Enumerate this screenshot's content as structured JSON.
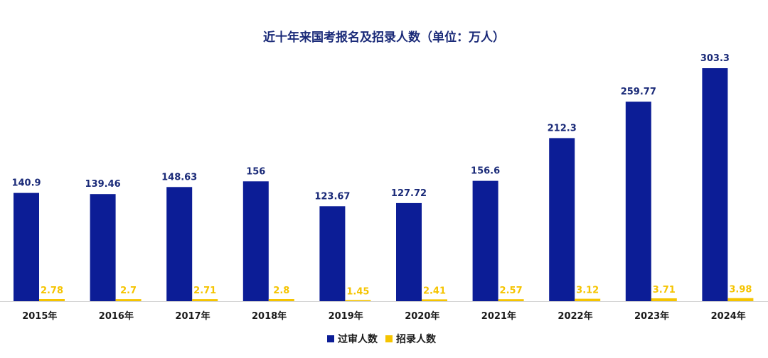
{
  "chart_data": {
    "type": "bar",
    "title": "近十年来国考报名及招录人数（单位：万人）",
    "categories": [
      "2015年",
      "2016年",
      "2017年",
      "2018年",
      "2019年",
      "2020年",
      "2021年",
      "2022年",
      "2023年",
      "2024年"
    ],
    "series": [
      {
        "name": "过审人数",
        "color": "#0c1d96",
        "values": [
          140.9,
          139.46,
          148.63,
          156,
          123.67,
          127.72,
          156.6,
          212.3,
          259.77,
          303.3
        ],
        "labels": [
          "140.9",
          "139.46",
          "148.63",
          "156",
          "123.67",
          "127.72",
          "156.6",
          "212.3",
          "259.77",
          "303.3"
        ]
      },
      {
        "name": "招录人数",
        "color": "#f5c400",
        "values": [
          2.78,
          2.7,
          2.71,
          2.8,
          1.45,
          2.41,
          2.57,
          3.12,
          3.71,
          3.98
        ],
        "labels": [
          "2.78",
          "2.7",
          "2.71",
          "2.8",
          "1.45",
          "2.41",
          "2.57",
          "3.12",
          "3.71",
          "3.98"
        ]
      }
    ],
    "ylim": [
      0,
      303.3
    ],
    "grid": false,
    "legend_position": "bottom-center"
  }
}
